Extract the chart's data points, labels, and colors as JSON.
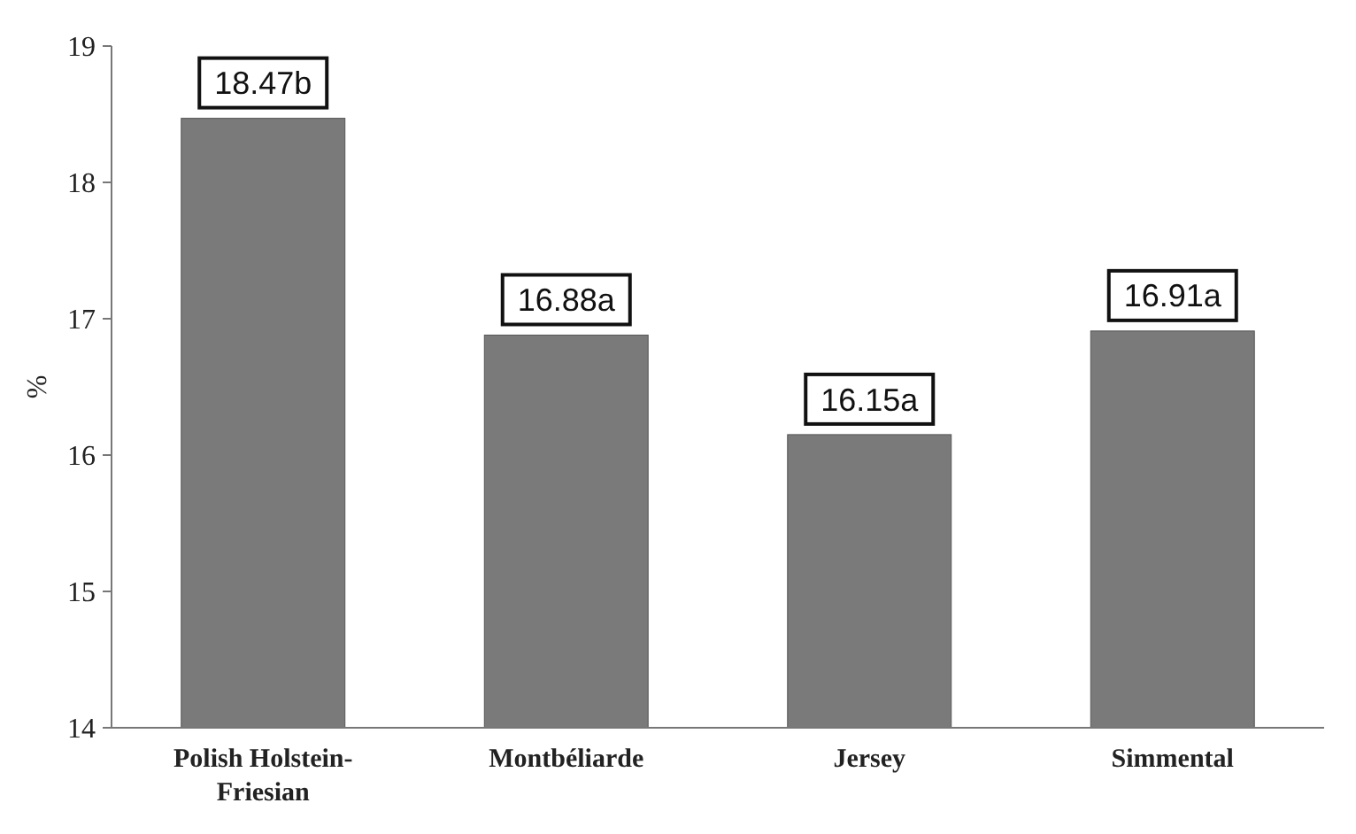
{
  "chart_data": {
    "type": "bar",
    "ylabel": "%",
    "categories": [
      "Polish Holstein-Friesian",
      "Montbéliarde",
      "Jersey",
      "Simmental"
    ],
    "values": [
      18.47,
      16.88,
      16.15,
      16.91
    ],
    "value_labels": [
      "18.47b",
      "16.88a",
      "16.15a",
      "16.91a"
    ],
    "color": "#7a7a7a",
    "ylim": [
      14,
      19
    ],
    "yticks": [
      14,
      15,
      16,
      17,
      18,
      19
    ]
  }
}
